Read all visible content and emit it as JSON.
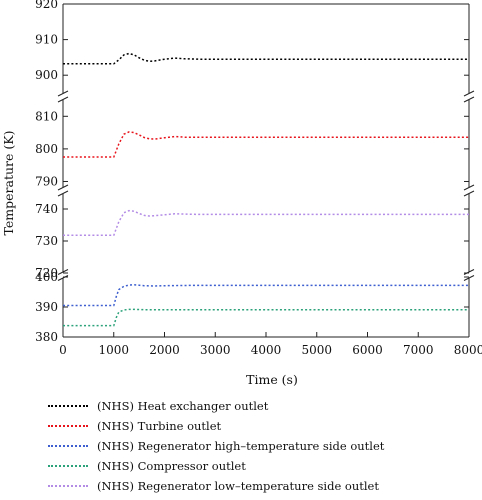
{
  "chart_data": {
    "type": "line",
    "xlabel": "Time (s)",
    "ylabel": "Temperature (K)",
    "xlim": [
      0,
      8000
    ],
    "x_ticks": [
      "0",
      "1000",
      "2000",
      "3000",
      "4000",
      "5000",
      "6000",
      "7000",
      "8000"
    ],
    "broken_y_axis": true,
    "grid": false,
    "legend_position": "below",
    "panels": [
      {
        "ylim": [
          895,
          920
        ],
        "y_ticks": [
          "900",
          "910",
          "920"
        ]
      },
      {
        "ylim": [
          788,
          815
        ],
        "y_ticks": [
          "790",
          "800",
          "810"
        ]
      },
      {
        "ylim": [
          720,
          745
        ],
        "y_ticks": [
          "720",
          "730",
          "740"
        ]
      },
      {
        "ylim": [
          380,
          400
        ],
        "y_ticks": [
          "380",
          "390",
          "400"
        ]
      }
    ],
    "series": [
      {
        "name": "(NHS) Heat exchanger outlet",
        "color": "#000000",
        "panel": 0,
        "x": [
          0,
          1000,
          1100,
          1200,
          1300,
          1400,
          1500,
          1600,
          1700,
          1800,
          2000,
          2200,
          2400,
          2700,
          3000,
          5000,
          8000
        ],
        "y": [
          903.2,
          903.2,
          904.3,
          905.7,
          906.1,
          905.7,
          904.9,
          904.2,
          903.9,
          904.0,
          904.5,
          904.8,
          904.6,
          904.5,
          904.5,
          904.5,
          904.5
        ]
      },
      {
        "name": "(NHS) Turbine outlet",
        "color": "#e8141c",
        "panel": 1,
        "x": [
          0,
          1000,
          1100,
          1200,
          1300,
          1400,
          1500,
          1600,
          1700,
          1800,
          2000,
          2200,
          2400,
          2700,
          3000,
          5000,
          8000
        ],
        "y": [
          797.5,
          797.5,
          801.5,
          804.5,
          805.2,
          805.0,
          804.3,
          803.5,
          803.1,
          803.0,
          803.4,
          803.8,
          803.6,
          803.6,
          803.6,
          803.6,
          803.6
        ]
      },
      {
        "name": "(NHS) Regenerator high-temperature side outlet",
        "color": "#3d5fcf",
        "panel": 3,
        "x": [
          0,
          1000,
          1050,
          1100,
          1200,
          1300,
          1400,
          1600,
          1800,
          2000,
          2500,
          3000,
          8000
        ],
        "y": [
          390.5,
          390.5,
          393.5,
          395.8,
          396.9,
          397.3,
          397.4,
          397.1,
          397.0,
          397.1,
          397.2,
          397.2,
          397.2
        ]
      },
      {
        "name": "(NHS) Compressor outlet",
        "color": "#2ca27a",
        "panel": 3,
        "x": [
          0,
          1000,
          1050,
          1100,
          1200,
          1300,
          1400,
          1600,
          1800,
          2000,
          2500,
          3000,
          8000
        ],
        "y": [
          383.8,
          383.8,
          386.5,
          388.3,
          389.0,
          389.2,
          389.2,
          389.1,
          389.1,
          389.1,
          389.1,
          389.1,
          389.1
        ]
      },
      {
        "name": "(NHS) Regenerator low-temperature side outlet",
        "color": "#b38ce6",
        "panel": 2,
        "x": [
          0,
          1000,
          1100,
          1200,
          1300,
          1400,
          1500,
          1600,
          1700,
          1800,
          2000,
          2200,
          2400,
          2700,
          3000,
          5000,
          8000
        ],
        "y": [
          731.8,
          731.8,
          736.0,
          738.8,
          739.5,
          739.3,
          738.6,
          738.0,
          737.8,
          737.9,
          738.2,
          738.5,
          738.4,
          738.3,
          738.3,
          738.3,
          738.3
        ]
      }
    ]
  },
  "legend": {
    "items": [
      {
        "label": "(NHS) Heat exchanger outlet",
        "color": "#000000"
      },
      {
        "label": "(NHS) Turbine outlet",
        "color": "#e8141c"
      },
      {
        "label": "(NHS) Regenerator high–temperature side outlet",
        "color": "#3d5fcf"
      },
      {
        "label": "(NHS) Compressor outlet",
        "color": "#2ca27a"
      },
      {
        "label": "(NHS) Regenerator low–temperature side outlet",
        "color": "#b38ce6"
      }
    ]
  }
}
